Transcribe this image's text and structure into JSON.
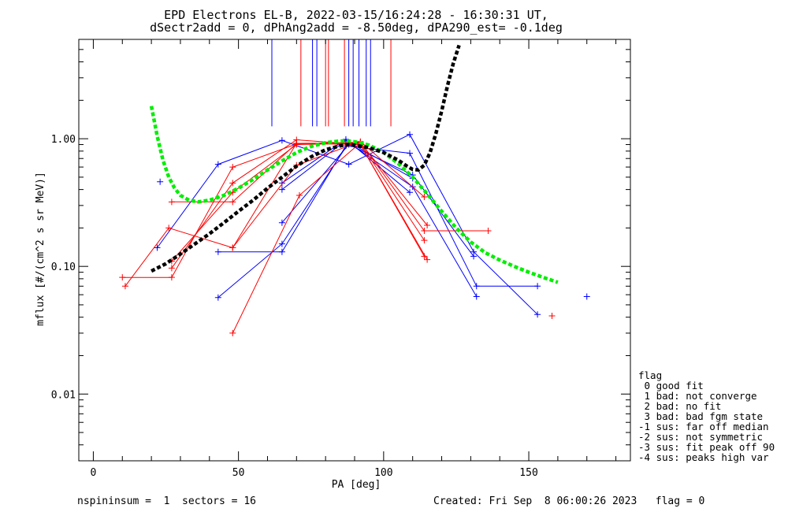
{
  "chart_data": {
    "type": "scatter",
    "title": "EPD Electrons EL-B, 2022-03-15/16:24:28 - 16:30:31 UT,",
    "subtitle": "dSectr2add = 0, dPhAng2add = -8.50deg, dPA290_est=  -0.1deg",
    "xlabel": "PA [deg]",
    "ylabel": "mflux [#/(cm^2 s sr MeV)]",
    "xlim": [
      -5,
      185
    ],
    "ylim": [
      0.003,
      6.0
    ],
    "yscale": "log",
    "x_ticks": [
      0,
      50,
      100,
      150
    ],
    "x_tick_labels": [
      "0",
      "50",
      "100",
      "150"
    ],
    "y_ticks": [
      0.01,
      0.1,
      1.0
    ],
    "y_tick_labels": [
      "0.01",
      "0.10",
      "1.00"
    ],
    "colors": {
      "blue": "#0000ff",
      "red": "#ff0000",
      "green": "#00ee00",
      "black": "#000000"
    },
    "series": [
      {
        "color": "blue",
        "x": [
          22,
          43,
          65,
          88,
          109,
          131,
          153
        ],
        "y": [
          0.14,
          0.63,
          0.97,
          0.63,
          1.08,
          0.13,
          0.042
        ]
      },
      {
        "color": "blue",
        "x": [
          43,
          65,
          87,
          109,
          132,
          153
        ],
        "y": [
          0.13,
          0.13,
          0.88,
          0.77,
          0.07,
          0.07
        ]
      },
      {
        "color": "blue",
        "x": [
          43,
          65,
          88,
          110,
          132
        ],
        "y": [
          0.057,
          0.15,
          0.93,
          0.42,
          0.058
        ]
      },
      {
        "color": "blue",
        "x": [
          65,
          88,
          110,
          131
        ],
        "y": [
          0.22,
          0.9,
          0.52,
          0.12
        ]
      },
      {
        "color": "blue",
        "x": [
          65,
          87,
          109
        ],
        "y": [
          0.45,
          0.99,
          0.38
        ]
      },
      {
        "color": "blue",
        "x": [
          65,
          87,
          110
        ],
        "y": [
          0.4,
          0.97,
          0.49
        ]
      },
      {
        "color": "red",
        "x": [
          10,
          27,
          48,
          70,
          92,
          114,
          136
        ],
        "y": [
          0.082,
          0.082,
          0.6,
          0.91,
          0.94,
          0.19,
          0.19
        ]
      },
      {
        "color": "red",
        "x": [
          11,
          26,
          48,
          70,
          92,
          115
        ],
        "y": [
          0.07,
          0.2,
          0.14,
          0.92,
          0.9,
          0.113
        ]
      },
      {
        "color": "red",
        "x": [
          27,
          48,
          70,
          92,
          114
        ],
        "y": [
          0.097,
          0.45,
          0.98,
          0.9,
          0.12
        ]
      },
      {
        "color": "red",
        "x": [
          27,
          48,
          70,
          92,
          114
        ],
        "y": [
          0.11,
          0.38,
          0.9,
          0.92,
          0.16
        ]
      },
      {
        "color": "red",
        "x": [
          27,
          48,
          70,
          92,
          115
        ],
        "y": [
          0.32,
          0.32,
          0.92,
          0.93,
          0.21
        ]
      },
      {
        "color": "red",
        "x": [
          48,
          70,
          92,
          114
        ],
        "y": [
          0.14,
          0.62,
          0.95,
          0.35
        ]
      },
      {
        "color": "red",
        "x": [
          48,
          71,
          92
        ],
        "y": [
          0.03,
          0.36,
          0.93
        ]
      }
    ],
    "isolated_points": [
      {
        "color": "blue",
        "x": 23,
        "y": 0.46
      },
      {
        "color": "blue",
        "x": 170,
        "y": 0.058
      },
      {
        "color": "red",
        "x": 158,
        "y": 0.041
      }
    ],
    "fit_curves": [
      {
        "color": "green",
        "dashed": true,
        "x": [
          20,
          22,
          24,
          26,
          28,
          30,
          33,
          36,
          40,
          45,
          50,
          55,
          60,
          65,
          70,
          75,
          80,
          85,
          88,
          91,
          95,
          100,
          105,
          110,
          115,
          120,
          125,
          130,
          135,
          140,
          145,
          150,
          155,
          160
        ],
        "y": [
          1.8,
          1.05,
          0.68,
          0.5,
          0.41,
          0.36,
          0.33,
          0.32,
          0.33,
          0.36,
          0.41,
          0.48,
          0.57,
          0.67,
          0.78,
          0.87,
          0.93,
          0.96,
          0.96,
          0.94,
          0.89,
          0.78,
          0.64,
          0.5,
          0.37,
          0.27,
          0.2,
          0.155,
          0.128,
          0.112,
          0.1,
          0.09,
          0.082,
          0.075
        ]
      },
      {
        "color": "black",
        "dashed": true,
        "x": [
          20,
          25,
          30,
          35,
          40,
          45,
          50,
          55,
          60,
          65,
          70,
          75,
          80,
          85,
          88,
          90,
          95,
          100,
          105,
          108,
          110,
          112,
          114,
          116,
          118,
          120,
          122,
          124,
          126
        ],
        "y": [
          0.092,
          0.105,
          0.125,
          0.15,
          0.18,
          0.22,
          0.27,
          0.33,
          0.41,
          0.5,
          0.61,
          0.72,
          0.82,
          0.88,
          0.9,
          0.89,
          0.85,
          0.78,
          0.68,
          0.61,
          0.575,
          0.57,
          0.62,
          0.78,
          1.1,
          1.65,
          2.6,
          3.9,
          5.4
        ]
      }
    ],
    "vertical_markers": [
      {
        "color": "blue",
        "x": 61.5,
        "y_bottom": 1.25
      },
      {
        "color": "blue",
        "x": 75.5,
        "y_bottom": 1.25
      },
      {
        "color": "blue",
        "x": 77.0,
        "y_bottom": 1.25
      },
      {
        "color": "blue",
        "x": 88.0,
        "y_bottom": 1.25
      },
      {
        "color": "blue",
        "x": 89.5,
        "y_bottom": 1.25
      },
      {
        "color": "blue",
        "x": 91.5,
        "y_bottom": 1.25
      },
      {
        "color": "blue",
        "x": 94.0,
        "y_bottom": 1.25
      },
      {
        "color": "blue",
        "x": 95.5,
        "y_bottom": 1.25
      },
      {
        "color": "red",
        "x": 71.5,
        "y_bottom": 1.25
      },
      {
        "color": "red",
        "x": 80.0,
        "y_bottom": 1.25
      },
      {
        "color": "red",
        "x": 81.0,
        "y_bottom": 1.25
      },
      {
        "color": "red",
        "x": 86.5,
        "y_bottom": 1.25
      },
      {
        "color": "red",
        "x": 102.5,
        "y_bottom": 1.25
      }
    ]
  },
  "legend": {
    "title": "flag",
    "items": [
      " 0 good fit",
      " 1 bad: not converge",
      " 2 bad: no fit",
      " 3 bad: bad fgm state",
      "-1 sus: far off median",
      "-2 sus: not symmetric",
      "-3 sus: fit peak off 90",
      "-4 sus: peaks high var"
    ]
  },
  "footer": {
    "left": "nspininsum =  1  sectors = 16",
    "right": "Created: Fri Sep  8 06:00:26 2023   flag = 0"
  }
}
